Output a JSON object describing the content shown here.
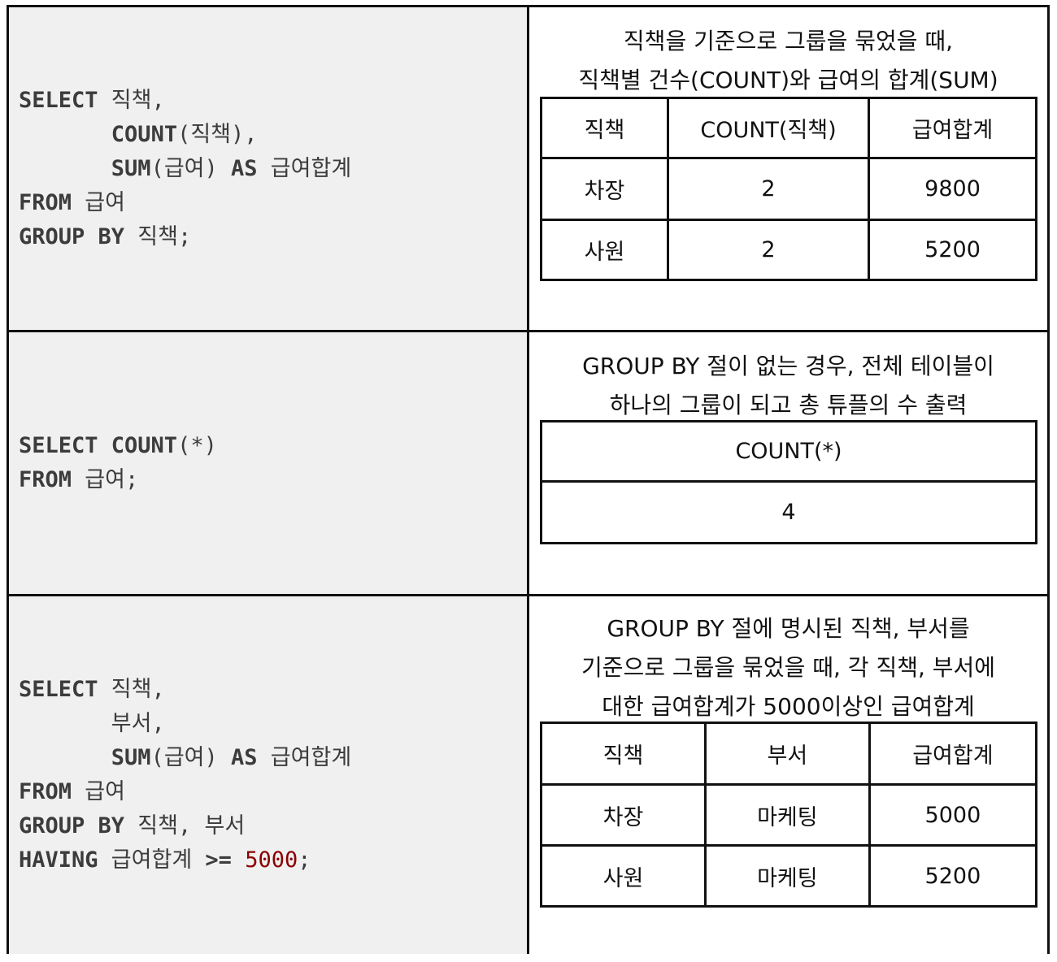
{
  "sections": [
    {
      "sql": [
        [
          {
            "t": "SELECT",
            "k": "kw"
          },
          {
            "t": " 직책,"
          }
        ],
        [
          {
            "t": "       "
          },
          {
            "t": "COUNT",
            "k": "kw"
          },
          {
            "t": "(직책),"
          }
        ],
        [
          {
            "t": "       "
          },
          {
            "t": "SUM",
            "k": "kw"
          },
          {
            "t": "(급여) "
          },
          {
            "t": "AS",
            "k": "kw"
          },
          {
            "t": " 급여합계"
          }
        ],
        [
          {
            "t": "FROM",
            "k": "kw"
          },
          {
            "t": " 급여"
          }
        ],
        [
          {
            "t": "GROUP BY",
            "k": "kw"
          },
          {
            "t": " 직책;"
          }
        ]
      ],
      "caption": [
        "직책을 기준으로 그룹을 묶었을 때,",
        "직책별 건수(COUNT)와 급여의 합계(SUM)"
      ],
      "table": {
        "headers": [
          "직책",
          "COUNT(직책)",
          "급여합계"
        ],
        "rows": [
          [
            "차장",
            "2",
            "9800"
          ],
          [
            "사원",
            "2",
            "5200"
          ]
        ]
      }
    },
    {
      "sql": [
        [
          {
            "t": "SELECT COUNT",
            "k": "kw"
          },
          {
            "t": "(*)"
          }
        ],
        [
          {
            "t": "FROM",
            "k": "kw"
          },
          {
            "t": " 급여;"
          }
        ]
      ],
      "caption": [
        "GROUP BY 절이 없는 경우, 전체 테이블이",
        "하나의 그룹이 되고 총 튜플의 수 출력"
      ],
      "table": {
        "headers": [
          "COUNT(*)"
        ],
        "rows": [
          [
            "4"
          ]
        ]
      }
    },
    {
      "sql": [
        [
          {
            "t": "SELECT",
            "k": "kw"
          },
          {
            "t": " 직책,"
          }
        ],
        [
          {
            "t": "       부서,"
          }
        ],
        [
          {
            "t": "       "
          },
          {
            "t": "SUM",
            "k": "kw"
          },
          {
            "t": "(급여) "
          },
          {
            "t": "AS",
            "k": "kw"
          },
          {
            "t": " 급여합계"
          }
        ],
        [
          {
            "t": "FROM",
            "k": "kw"
          },
          {
            "t": " 급여"
          }
        ],
        [
          {
            "t": "GROUP BY",
            "k": "kw"
          },
          {
            "t": " 직책, 부서"
          }
        ],
        [
          {
            "t": "HAVING",
            "k": "kw"
          },
          {
            "t": " 급여합계 "
          },
          {
            "t": ">=",
            "k": "kw"
          },
          {
            "t": " "
          },
          {
            "t": "5000",
            "k": "num"
          },
          {
            "t": ";"
          }
        ]
      ],
      "caption": [
        "GROUP BY 절에 명시된 직책, 부서를",
        "기준으로 그룹을 묶었을 때, 각 직책, 부서에",
        "대한 급여합계가 5000이상인 급여합계"
      ],
      "table": {
        "headers": [
          "직책",
          "부서",
          "급여합계"
        ],
        "rows": [
          [
            "차장",
            "마케팅",
            "5000"
          ],
          [
            "사원",
            "마케팅",
            "5200"
          ]
        ]
      }
    }
  ]
}
